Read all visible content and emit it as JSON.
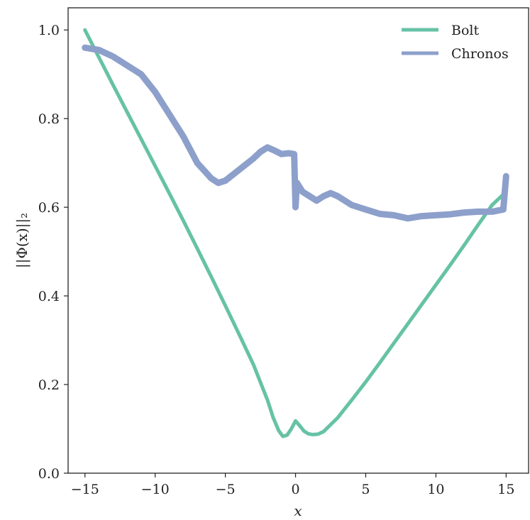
{
  "chart_data": {
    "type": "line",
    "title": "",
    "xlabel": "x",
    "ylabel": "||Φ(x)||₂",
    "xlim": [
      -16.2,
      16.6
    ],
    "ylim": [
      0.0,
      1.05
    ],
    "x_ticks": [
      -15,
      -10,
      -5,
      0,
      5,
      10,
      15
    ],
    "x_tick_labels": [
      "−15",
      "−10",
      "−5",
      "0",
      "5",
      "10",
      "15"
    ],
    "y_ticks": [
      0.0,
      0.2,
      0.4,
      0.6,
      0.8,
      1.0
    ],
    "y_tick_labels": [
      "0.0",
      "0.2",
      "0.4",
      "0.6",
      "0.8",
      "1.0"
    ],
    "grid": false,
    "legend_position": "top-right",
    "series": [
      {
        "name": "Bolt",
        "color": "#66c2a5",
        "x": [
          -15,
          -14,
          -13,
          -12,
          -11,
          -10,
          -9,
          -8,
          -7,
          -6,
          -5,
          -4,
          -3,
          -2,
          -1.6,
          -1.2,
          -0.9,
          -0.6,
          -0.3,
          0,
          0.3,
          0.6,
          0.9,
          1.2,
          1.6,
          2,
          3,
          4,
          5,
          6,
          7,
          8,
          9,
          10,
          11,
          12,
          13,
          14,
          15
        ],
        "y": [
          1.0,
          0.938,
          0.876,
          0.815,
          0.754,
          0.693,
          0.632,
          0.57,
          0.507,
          0.443,
          0.378,
          0.312,
          0.245,
          0.165,
          0.126,
          0.096,
          0.083,
          0.086,
          0.1,
          0.118,
          0.107,
          0.095,
          0.089,
          0.087,
          0.088,
          0.094,
          0.125,
          0.165,
          0.206,
          0.249,
          0.293,
          0.337,
          0.381,
          0.425,
          0.469,
          0.514,
          0.56,
          0.605,
          0.635
        ]
      },
      {
        "name": "Chronos",
        "color": "#8da0cb",
        "x": [
          -15,
          -14,
          -13,
          -12,
          -11,
          -10,
          -9,
          -8,
          -7,
          -6,
          -5.5,
          -5,
          -4,
          -3,
          -2.5,
          -2,
          -1.5,
          -1,
          -0.5,
          -0.1,
          0,
          0.1,
          0.5,
          1,
          1.5,
          2,
          2.5,
          3,
          4,
          5,
          6,
          7,
          8,
          9,
          10,
          11,
          12,
          13,
          14,
          14.8,
          15
        ],
        "y": [
          0.96,
          0.955,
          0.94,
          0.92,
          0.9,
          0.86,
          0.81,
          0.76,
          0.7,
          0.665,
          0.655,
          0.66,
          0.685,
          0.71,
          0.725,
          0.735,
          0.728,
          0.72,
          0.722,
          0.72,
          0.6,
          0.655,
          0.635,
          0.625,
          0.615,
          0.625,
          0.632,
          0.625,
          0.605,
          0.595,
          0.585,
          0.582,
          0.575,
          0.58,
          0.582,
          0.584,
          0.588,
          0.59,
          0.59,
          0.595,
          0.67
        ]
      }
    ]
  }
}
